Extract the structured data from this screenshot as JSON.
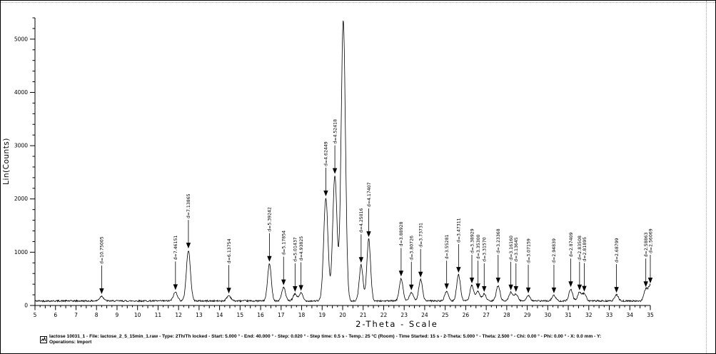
{
  "window": {
    "background": "#ffffff",
    "border_color": "#000000",
    "accent_color": "#000000"
  },
  "chart_data": {
    "type": "line",
    "title": "",
    "xlabel": "2-Theta - Scale",
    "ylabel": "Lin(Counts)",
    "xlim": [
      5,
      35
    ],
    "ylim": [
      0,
      5400
    ],
    "grid": false,
    "legend": "none",
    "line_color": "#000000",
    "x_ticks": [
      5,
      6,
      7,
      8,
      9,
      10,
      11,
      12,
      13,
      14,
      15,
      16,
      17,
      18,
      19,
      20,
      21,
      22,
      23,
      24,
      25,
      26,
      27,
      28,
      29,
      30,
      31,
      32,
      33,
      34,
      35
    ],
    "y_ticks": [
      0,
      1000,
      2000,
      3000,
      4000,
      5000
    ],
    "y_minor_tick_step": 200,
    "x_minor_tick_step": 0.25,
    "baseline_counts": 85,
    "peaks": [
      {
        "two_theta": 8.25,
        "counts": 175,
        "d_label": "d=10.75005"
      },
      {
        "two_theta": 11.85,
        "counts": 250,
        "d_label": "d=7.46151"
      },
      {
        "two_theta": 12.48,
        "counts": 1030,
        "d_label": "d=7.13865"
      },
      {
        "two_theta": 14.45,
        "counts": 185,
        "d_label": "d=6.13754"
      },
      {
        "two_theta": 16.43,
        "counts": 780,
        "d_label": "d=5.39242"
      },
      {
        "two_theta": 17.12,
        "counts": 340,
        "d_label": "d=5.17854"
      },
      {
        "two_theta": 17.68,
        "counts": 215,
        "d_label": "d=5.01437"
      },
      {
        "two_theta": 17.97,
        "counts": 235,
        "d_label": "d=4.93825"
      },
      {
        "two_theta": 19.18,
        "counts": 2010,
        "d_label": "d=4.62449"
      },
      {
        "two_theta": 19.62,
        "counts": 2430,
        "d_label": "d=4.52418"
      },
      {
        "two_theta": 20.03,
        "counts": 5360,
        "d_label": null
      },
      {
        "two_theta": 20.9,
        "counts": 760,
        "d_label": "d=4.25016"
      },
      {
        "two_theta": 21.27,
        "counts": 1245,
        "d_label": "d=4.17407"
      },
      {
        "two_theta": 22.85,
        "counts": 505,
        "d_label": "d=3.88928"
      },
      {
        "two_theta": 23.35,
        "counts": 245,
        "d_label": "d=3.80726"
      },
      {
        "two_theta": 23.8,
        "counts": 485,
        "d_label": "d=3.73731"
      },
      {
        "two_theta": 25.07,
        "counts": 265,
        "d_label": "d=3.55281"
      },
      {
        "two_theta": 25.65,
        "counts": 575,
        "d_label": "d=3.47311"
      },
      {
        "two_theta": 26.3,
        "counts": 375,
        "d_label": "d=3.38929"
      },
      {
        "two_theta": 26.6,
        "counts": 265,
        "d_label": "d=3.35300"
      },
      {
        "two_theta": 26.9,
        "counts": 215,
        "d_label": "d=3.31570"
      },
      {
        "two_theta": 27.58,
        "counts": 375,
        "d_label": "d=3.23368"
      },
      {
        "two_theta": 28.2,
        "counts": 245,
        "d_label": "d=3.16160"
      },
      {
        "two_theta": 28.45,
        "counts": 215,
        "d_label": "d=3.13645"
      },
      {
        "two_theta": 29.05,
        "counts": 190,
        "d_label": "d=3.07159"
      },
      {
        "two_theta": 30.3,
        "counts": 190,
        "d_label": "d=2.94839"
      },
      {
        "two_theta": 31.12,
        "counts": 305,
        "d_label": "d=2.87409"
      },
      {
        "two_theta": 31.55,
        "counts": 245,
        "d_label": "d=2.83508"
      },
      {
        "two_theta": 31.78,
        "counts": 220,
        "d_label": "d=2.81895"
      },
      {
        "two_theta": 33.35,
        "counts": 200,
        "d_label": "d=2.68799"
      },
      {
        "two_theta": 34.78,
        "counts": 305,
        "d_label": "d=2.58863"
      },
      {
        "two_theta": 35.0,
        "counts": 375,
        "d_label": "d=2.56069"
      }
    ]
  },
  "caption": {
    "line1": "lactose 10031_1 - File: lactose_2_5_15min_1.raw - Type: 2Th/Th locked - Start: 5.000 ° - End: 40.000 ° - Step: 0.020 ° - Step time: 0.5 s - Temp.: 25 °C (Room) - Time Started: 15 s - 2-Theta: 5.000 ° - Theta: 2.500 ° - Chi: 0.00 ° - Phi: 0.00 ° - X: 0.0 mm - Y:",
    "line2": "Operations: Import"
  }
}
